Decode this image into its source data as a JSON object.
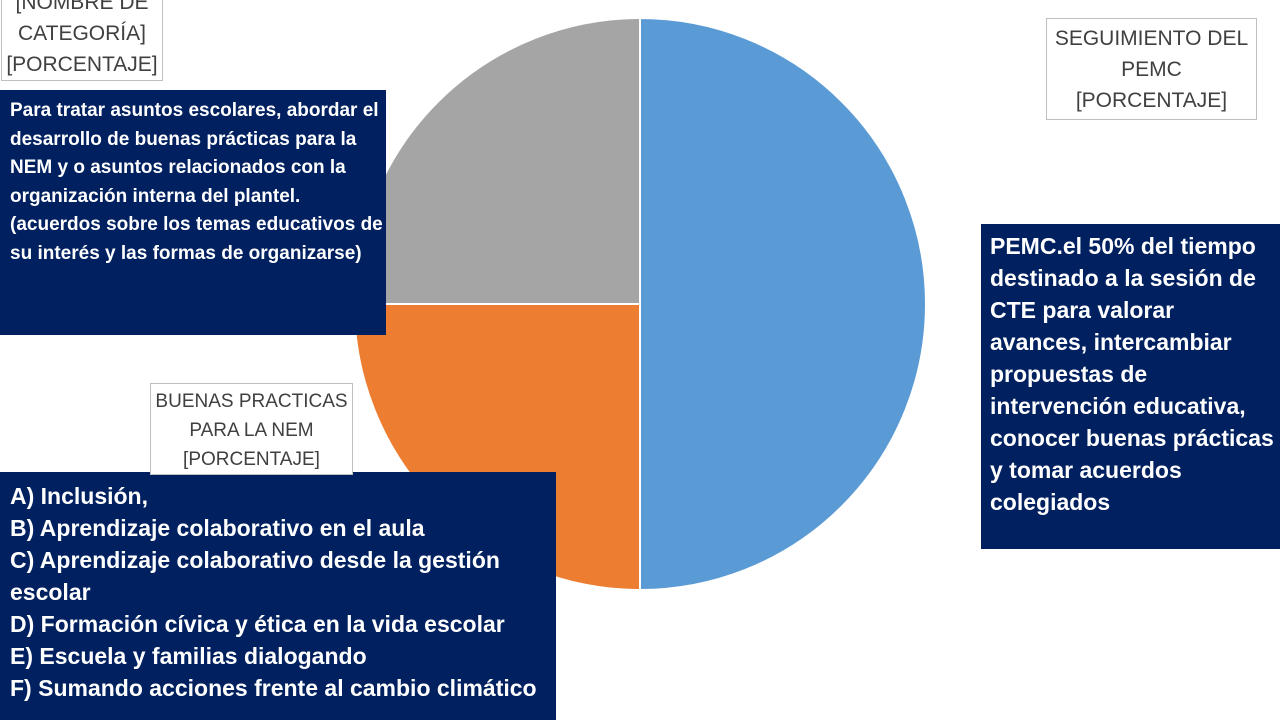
{
  "chart_data": {
    "type": "pie",
    "slices": [
      {
        "label": "SEGUIMIENTO DEL PEMC",
        "value": 50,
        "color": "#5b9bd5"
      },
      {
        "label": "BUENAS PRACTICAS PARA LA NEM",
        "value": 25,
        "color": "#ed7d31"
      },
      {
        "label": "[NOMBRE DE CATEGORÍA]",
        "value": 25,
        "color": "#a5a5a5"
      }
    ]
  },
  "labels": {
    "gray": "[NOMBRE DE\nCATEGORÍA]\n[PORCENTAJE]",
    "blue": "SEGUIMIENTO DEL\nPEMC\n[PORCENTAJE]",
    "orange": "BUENAS PRACTICAS\nPARA LA NEM\n[PORCENTAJE]"
  },
  "notes": {
    "left": "Para tratar asuntos escolares, abordar el desarrollo de buenas prácticas para la NEM y o asuntos relacionados con la organización interna del plantel.\n(acuerdos sobre los temas educativos de su interés y las formas de organizarse)",
    "right": "PEMC.el 50% del tiempo destinado a la sesión de CTE para valorar avances, intercambiar propuestas de intervención educativa, conocer buenas prácticas y tomar acuerdos colegiados",
    "bottom": [
      "A) Inclusión,",
      "B) Aprendizaje colaborativo en el aula",
      "C) Aprendizaje colaborativo desde la gestión escolar",
      "D) Formación cívica y ética en la vida escolar",
      "E) Escuela y familias dialogando",
      "F) Sumando acciones frente al cambio climático"
    ]
  }
}
